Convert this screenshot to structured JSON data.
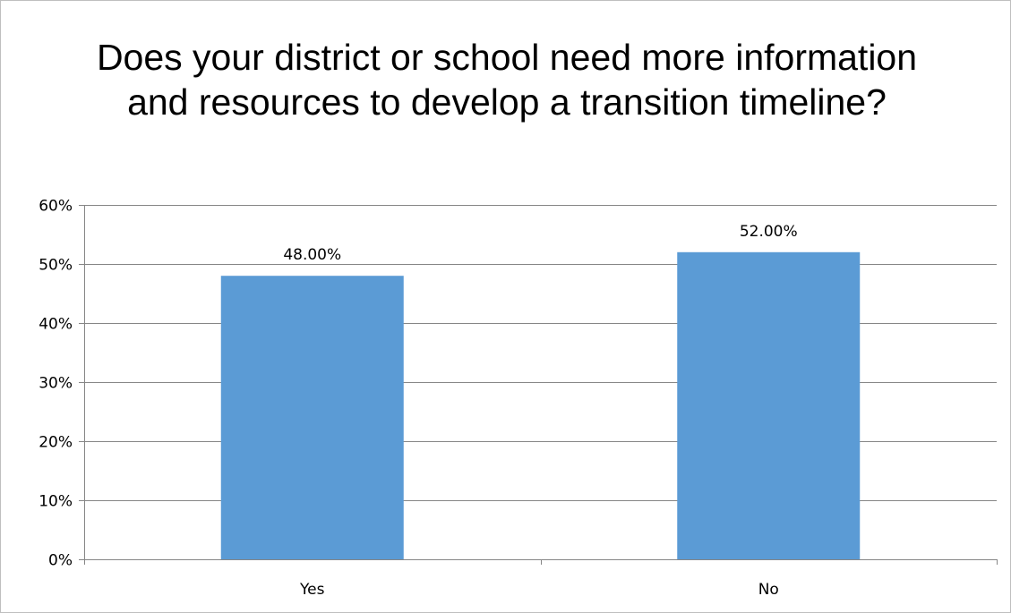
{
  "chart_data": {
    "type": "bar",
    "title": "Does your district or school need more information and resources to develop a transition timeline?",
    "categories": [
      "Yes",
      "No"
    ],
    "values": [
      48,
      52
    ],
    "data_labels": [
      "48.00%",
      "52.00%"
    ],
    "xlabel": "",
    "ylabel": "",
    "ylim": [
      0,
      60
    ],
    "y_ticks": [
      0,
      10,
      20,
      30,
      40,
      50,
      60
    ],
    "y_tick_labels": [
      "0%",
      "10%",
      "20%",
      "30%",
      "40%",
      "50%",
      "60%"
    ],
    "grid": true,
    "legend": "none",
    "bar_color": "#5b9bd5",
    "gridline_color": "#868686"
  }
}
